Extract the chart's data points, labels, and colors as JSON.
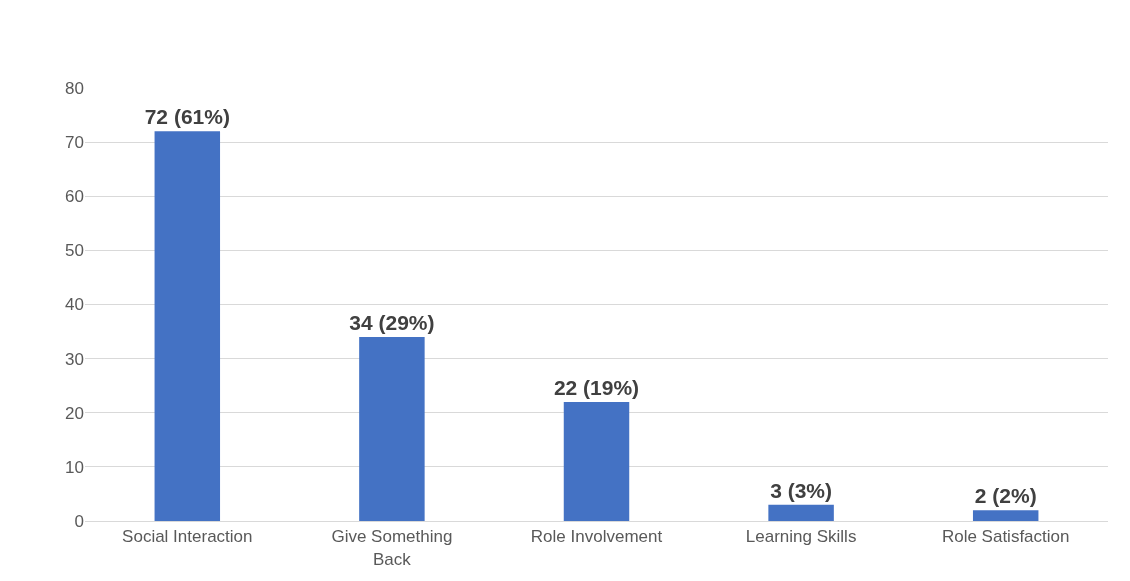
{
  "chart_data": {
    "type": "bar",
    "categories": [
      "Social Interaction",
      "Give Something Back",
      "Role Involvement",
      "Learning Skills",
      "Role Satisfaction"
    ],
    "values": [
      72,
      34,
      22,
      3,
      2
    ],
    "value_labels": [
      "72 (61%)",
      "34 (29%)",
      "22 (19%)",
      "3 (3%)",
      "2 (2%)"
    ],
    "color": "#4472c4",
    "ylim": [
      0,
      80
    ],
    "yticks": [
      0,
      10,
      20,
      30,
      40,
      50,
      60,
      70,
      80
    ],
    "grid": "y"
  }
}
